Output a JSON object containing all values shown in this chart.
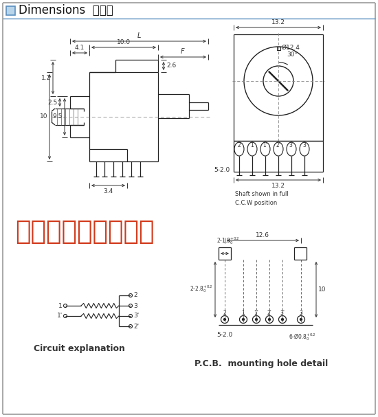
{
  "title": "Dimensions  尺寸图",
  "bg_color": "#ffffff",
  "line_color": "#222222",
  "dim_color": "#333333",
  "watermark_color": "#cc2200",
  "watermark_text": "广州市永兴科技电子",
  "circuit_label": "Circuit explanation",
  "pcb_label": "P.C.B.  mounting hole detail",
  "shaft_note": "Shaft shown in full\nC.C.W position",
  "header_box_color": "#a8c4e0",
  "dims": {
    "side_41": "4.1",
    "side_L": "L",
    "side_100": "10.0",
    "side_F": "F",
    "side_25": "2.5",
    "side_12": "1.2",
    "side_26": "2.6",
    "side_95": "9.5",
    "side_10": "10",
    "side_34": "3.4",
    "top_132": "13.2",
    "top_d124": "Ø12.4",
    "top_30": "30°",
    "top_52": "5-2.0",
    "top_132b": "13.2",
    "pcb_126": "12.6",
    "pcb_218": "2-1.8",
    "pcb_228": "2-2.8",
    "pcb_10": "10",
    "pcb_52": "5-2.0",
    "pcb_holes": "6-Ø0.8"
  }
}
